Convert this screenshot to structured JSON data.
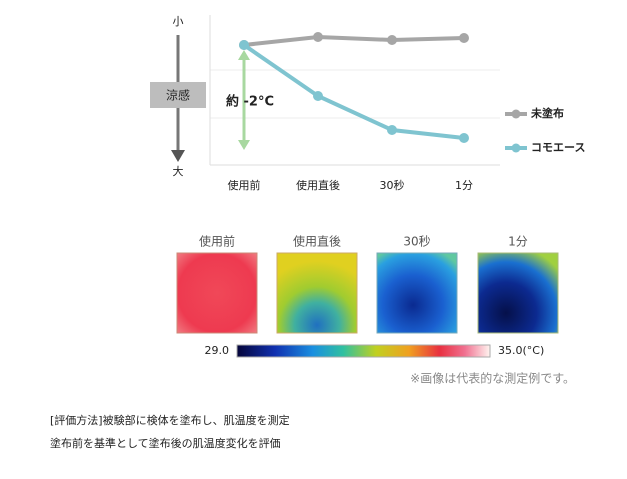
{
  "chart_data": {
    "type": "line",
    "y_top_label": "小",
    "y_bottom_label": "大",
    "y_axis_label": "涼感",
    "annotation": "約 -2°C",
    "categories": [
      "使用前",
      "使用直後",
      "30秒",
      "1分"
    ],
    "series": [
      {
        "name": "未塗布",
        "color": "#a6a6a6",
        "values": [
          0,
          0.16,
          0.1,
          0.14
        ]
      },
      {
        "name": "コモエース",
        "color": "#7fc4d0",
        "values": [
          0,
          -1.02,
          -1.7,
          -1.86
        ]
      }
    ],
    "ylim": [
      -2.4,
      0.6
    ]
  },
  "thermal": {
    "labels": [
      "使用前",
      "使用直後",
      "30秒",
      "1分"
    ],
    "scale_ticks": [
      {
        "value": 29,
        "label": "29.0"
      },
      {
        "value": 35,
        "label": "35.0(°C)"
      }
    ],
    "note": "※画像は代表的な測定例です。"
  },
  "method": [
    "[評価方法]被験部に検体を塗布し、肌温度を測定",
    "塗布前を基準として塗布後の肌温度変化を評価"
  ]
}
